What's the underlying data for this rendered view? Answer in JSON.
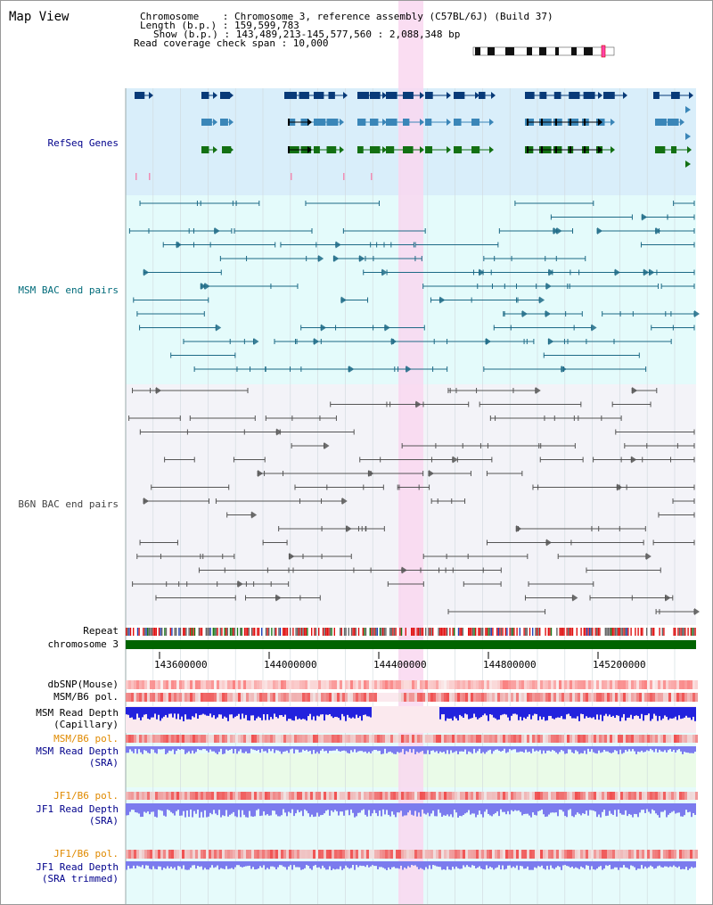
{
  "header": {
    "title": "Map View",
    "chromosome_line": "Chromosome    : Chromosome 3, reference assembly (C57BL/6J) (Build 37)",
    "length_line": "Length (b.p.) : 159,599,783",
    "show_line": "Show (b.p.) : 143,489,213-145,577,560 : 2,088,348 bp",
    "coverage_line": "Read coverage check span : 10,000"
  },
  "tracks": {
    "refseq": "RefSeq Genes",
    "msm_bac": "MSM BAC end pairs",
    "b6n_bac": "B6N BAC end pairs",
    "repeat": "Repeat",
    "chromosome": "chromosome 3",
    "dbsnp": "dbSNP(Mouse)",
    "msm_b6_pol_1": "MSM/B6 pol.",
    "msm_depth_cap_1": "MSM Read Depth",
    "msm_depth_cap_2": "(Capillary)",
    "msm_b6_pol_2": "MSM/B6 pol.",
    "msm_depth_sra_1": "MSM Read Depth",
    "msm_depth_sra_2": "(SRA)",
    "jf1_b6_pol_1": "JF1/B6 pol.",
    "jf1_depth_sra_1": "JF1 Read Depth",
    "jf1_depth_sra_2": "(SRA)",
    "jf1_b6_pol_2": "JF1/B6 pol.",
    "jf1_depth_trim_1": "JF1 Read Depth",
    "jf1_depth_trim_2": "(SRA trimmed)"
  },
  "axis": {
    "ticks": [
      "143600000",
      "144000000",
      "144400000",
      "144800000",
      "145200000"
    ]
  },
  "colors": {
    "refseq_bg": "#d9eefa",
    "msm_bg": "#e4fbfb",
    "b6n_bg": "#f3f3f8",
    "highlight": "#f9d7f0",
    "gene_dark": "#083a78",
    "gene_mid": "#3a86b8",
    "gene_green": "#137013",
    "chrom_green": "#006400",
    "depth_blue": "#2222dd",
    "depth_light": "#7b7bee"
  }
}
